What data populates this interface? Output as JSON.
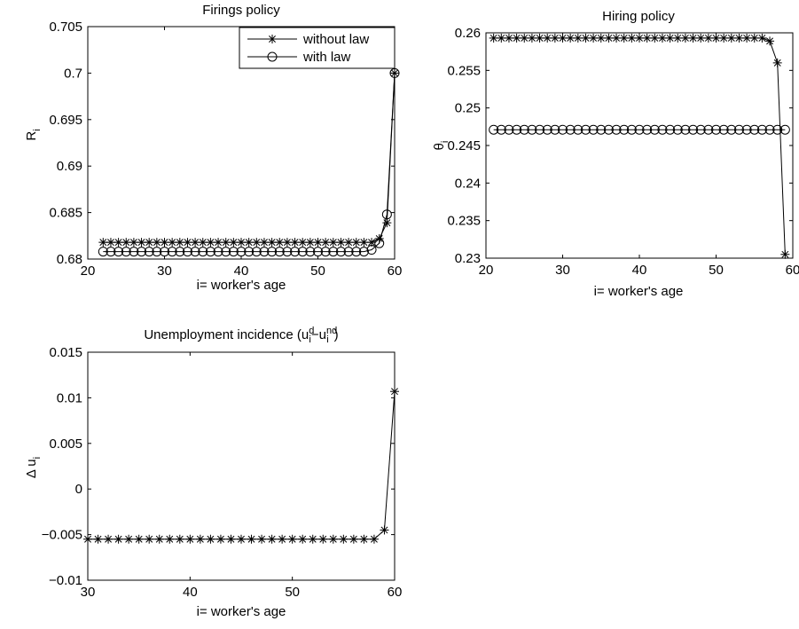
{
  "chart_data": [
    {
      "type": "line",
      "title": "Firings policy",
      "xlabel": "i= worker's age",
      "ylabel": "R",
      "ylabel_sub": "i",
      "xlim": [
        20,
        60
      ],
      "ylim": [
        0.68,
        0.705
      ],
      "xticks": [
        20,
        30,
        40,
        50,
        60
      ],
      "xtick_labels": [
        "20",
        "30",
        "40",
        "50",
        "60"
      ],
      "yticks": [
        0.68,
        0.685,
        0.69,
        0.695,
        0.7,
        0.705
      ],
      "ytick_labels": [
        "0.68",
        "0.685",
        "0.69",
        "0.695",
        "0.7",
        "0.705"
      ],
      "legend": {
        "placement": "top-right",
        "entries": [
          "without law",
          "with law"
        ]
      },
      "series": [
        {
          "name": "without law",
          "marker": "star",
          "x": [
            22,
            23,
            24,
            25,
            26,
            27,
            28,
            29,
            30,
            31,
            32,
            33,
            34,
            35,
            36,
            37,
            38,
            39,
            40,
            41,
            42,
            43,
            44,
            45,
            46,
            47,
            48,
            49,
            50,
            51,
            52,
            53,
            54,
            55,
            56,
            57,
            58,
            59,
            60
          ],
          "y": [
            0.6818,
            0.6818,
            0.6818,
            0.6818,
            0.6818,
            0.6818,
            0.6818,
            0.6818,
            0.6818,
            0.6818,
            0.6818,
            0.6818,
            0.6818,
            0.6818,
            0.6818,
            0.6818,
            0.6818,
            0.6818,
            0.6818,
            0.6818,
            0.6818,
            0.6818,
            0.6818,
            0.6818,
            0.6818,
            0.6818,
            0.6818,
            0.6818,
            0.6818,
            0.6818,
            0.6818,
            0.6818,
            0.6818,
            0.6818,
            0.6818,
            0.6818,
            0.6822,
            0.6839,
            0.7
          ]
        },
        {
          "name": "with law",
          "marker": "circle",
          "x": [
            22,
            23,
            24,
            25,
            26,
            27,
            28,
            29,
            30,
            31,
            32,
            33,
            34,
            35,
            36,
            37,
            38,
            39,
            40,
            41,
            42,
            43,
            44,
            45,
            46,
            47,
            48,
            49,
            50,
            51,
            52,
            53,
            54,
            55,
            56,
            57,
            58,
            59,
            60
          ],
          "y": [
            0.6808,
            0.6808,
            0.6808,
            0.6808,
            0.6808,
            0.6808,
            0.6808,
            0.6808,
            0.6808,
            0.6808,
            0.6808,
            0.6808,
            0.6808,
            0.6808,
            0.6808,
            0.6808,
            0.6808,
            0.6808,
            0.6808,
            0.6808,
            0.6808,
            0.6808,
            0.6808,
            0.6808,
            0.6808,
            0.6808,
            0.6808,
            0.6808,
            0.6808,
            0.6808,
            0.6808,
            0.6808,
            0.6808,
            0.6808,
            0.6808,
            0.681,
            0.6817,
            0.6848,
            0.7
          ]
        }
      ]
    },
    {
      "type": "line",
      "title": "Hiring policy",
      "xlabel": "i= worker's age",
      "ylabel": "θ",
      "ylabel_sub": "i",
      "xlim": [
        20,
        60
      ],
      "ylim": [
        0.23,
        0.26
      ],
      "xticks": [
        20,
        30,
        40,
        50,
        60
      ],
      "xtick_labels": [
        "20",
        "30",
        "40",
        "50",
        "60"
      ],
      "yticks": [
        0.23,
        0.235,
        0.24,
        0.245,
        0.25,
        0.255,
        0.26
      ],
      "ytick_labels": [
        "0.23",
        "0.235",
        "0.24",
        "0.245",
        "0.25",
        "0.255",
        "0.26"
      ],
      "series": [
        {
          "name": "without law",
          "marker": "star",
          "x": [
            21,
            22,
            23,
            24,
            25,
            26,
            27,
            28,
            29,
            30,
            31,
            32,
            33,
            34,
            35,
            36,
            37,
            38,
            39,
            40,
            41,
            42,
            43,
            44,
            45,
            46,
            47,
            48,
            49,
            50,
            51,
            52,
            53,
            54,
            55,
            56,
            57,
            58,
            59
          ],
          "y": [
            0.2593,
            0.2593,
            0.2593,
            0.2593,
            0.2593,
            0.2593,
            0.2593,
            0.2593,
            0.2593,
            0.2593,
            0.2593,
            0.2593,
            0.2593,
            0.2593,
            0.2593,
            0.2593,
            0.2593,
            0.2593,
            0.2593,
            0.2593,
            0.2593,
            0.2593,
            0.2593,
            0.2593,
            0.2593,
            0.2593,
            0.2593,
            0.2593,
            0.2593,
            0.2593,
            0.2593,
            0.2593,
            0.2593,
            0.2593,
            0.2593,
            0.2593,
            0.2589,
            0.256,
            0.2305
          ]
        },
        {
          "name": "with law",
          "marker": "circle",
          "x": [
            21,
            22,
            23,
            24,
            25,
            26,
            27,
            28,
            29,
            30,
            31,
            32,
            33,
            34,
            35,
            36,
            37,
            38,
            39,
            40,
            41,
            42,
            43,
            44,
            45,
            46,
            47,
            48,
            49,
            50,
            51,
            52,
            53,
            54,
            55,
            56,
            57,
            58,
            59
          ],
          "y": [
            0.2471,
            0.2471,
            0.2471,
            0.2471,
            0.2471,
            0.2471,
            0.2471,
            0.2471,
            0.2471,
            0.2471,
            0.2471,
            0.2471,
            0.2471,
            0.2471,
            0.2471,
            0.2471,
            0.2471,
            0.2471,
            0.2471,
            0.2471,
            0.2471,
            0.2471,
            0.2471,
            0.2471,
            0.2471,
            0.2471,
            0.2471,
            0.2471,
            0.2471,
            0.2471,
            0.2471,
            0.2471,
            0.2471,
            0.2471,
            0.2471,
            0.2471,
            0.2471,
            0.2471,
            0.2471
          ]
        }
      ]
    },
    {
      "type": "line",
      "title": "Unemployment incidence (u",
      "title_sup1": "d",
      "title_sub1": "i",
      "title_mid": "−u",
      "title_sup2": "nd",
      "title_sub2": "i",
      "title_end": ")",
      "xlabel": "i= worker's age",
      "ylabel": "Δ u",
      "ylabel_sub": "i",
      "xlim": [
        30,
        60
      ],
      "ylim": [
        -0.01,
        0.015
      ],
      "xticks": [
        30,
        40,
        50,
        60
      ],
      "xtick_labels": [
        "30",
        "40",
        "50",
        "60"
      ],
      "yticks": [
        -0.01,
        -0.005,
        0,
        0.005,
        0.01,
        0.015
      ],
      "ytick_labels": [
        "−0.01",
        "−0.005",
        "0",
        "0.005",
        "0.01",
        "0.015"
      ],
      "series": [
        {
          "marker": "star",
          "x": [
            30,
            31,
            32,
            33,
            34,
            35,
            36,
            37,
            38,
            39,
            40,
            41,
            42,
            43,
            44,
            45,
            46,
            47,
            48,
            49,
            50,
            51,
            52,
            53,
            54,
            55,
            56,
            57,
            58,
            59,
            60
          ],
          "y": [
            -0.0055,
            -0.0055,
            -0.0055,
            -0.0055,
            -0.0055,
            -0.0055,
            -0.0055,
            -0.0055,
            -0.0055,
            -0.0055,
            -0.0055,
            -0.0055,
            -0.0055,
            -0.0055,
            -0.0055,
            -0.0055,
            -0.0055,
            -0.0055,
            -0.0055,
            -0.0055,
            -0.0055,
            -0.0055,
            -0.0055,
            -0.0055,
            -0.0055,
            -0.0055,
            -0.0055,
            -0.0055,
            -0.0055,
            -0.0045,
            0.0107
          ]
        }
      ]
    }
  ]
}
